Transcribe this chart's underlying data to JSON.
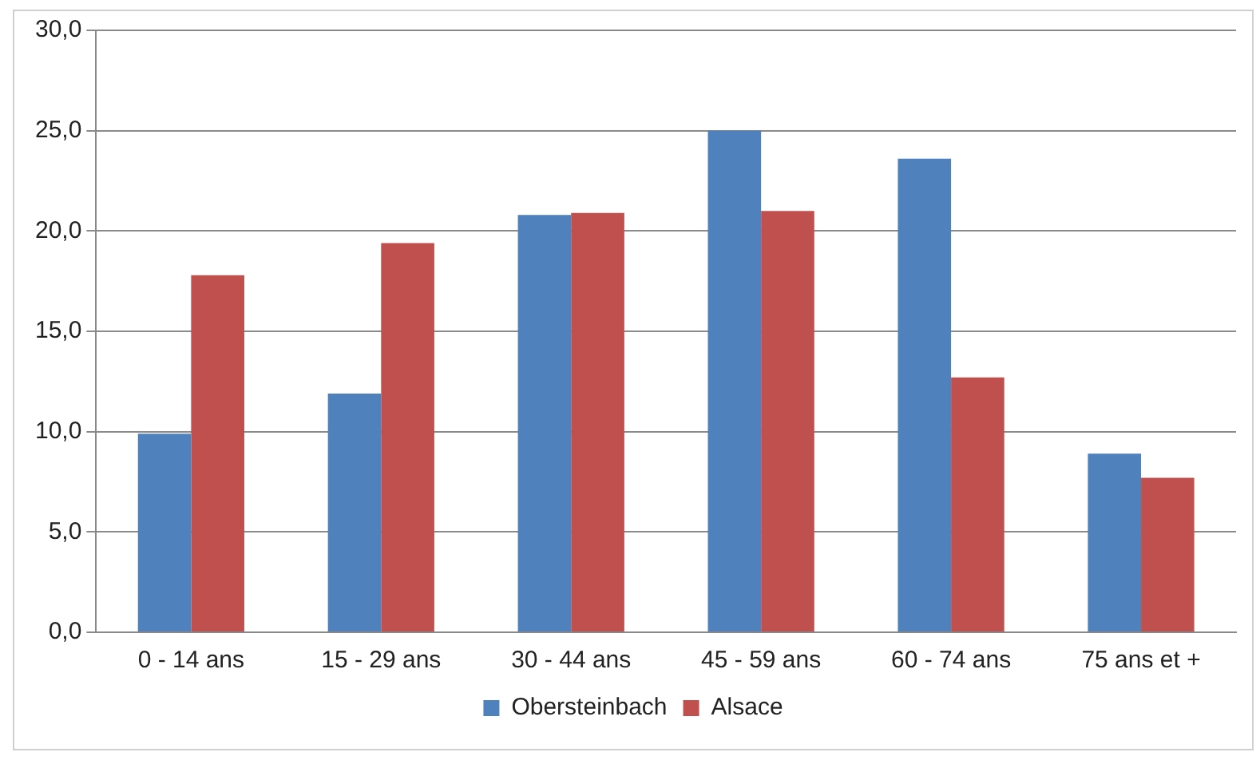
{
  "chart_data": {
    "type": "bar",
    "categories": [
      "0 - 14 ans",
      "15 - 29 ans",
      "30 - 44 ans",
      "45 - 59 ans",
      "60 - 74 ans",
      "75 ans et +"
    ],
    "series": [
      {
        "name": "Obersteinbach",
        "color": "#4f81bd",
        "values": [
          9.9,
          11.9,
          20.8,
          25.0,
          23.6,
          8.9
        ]
      },
      {
        "name": "Alsace",
        "color": "#c0504d",
        "values": [
          17.8,
          19.4,
          20.9,
          21.0,
          12.7,
          7.7
        ]
      }
    ],
    "ylim": [
      0,
      30
    ],
    "yticks": [
      {
        "value": 0,
        "label": "0,0"
      },
      {
        "value": 5,
        "label": "5,0"
      },
      {
        "value": 10,
        "label": "10,0"
      },
      {
        "value": 15,
        "label": "15,0"
      },
      {
        "value": 20,
        "label": "20,0"
      },
      {
        "value": 25,
        "label": "25,0"
      },
      {
        "value": 30,
        "label": "30,0"
      }
    ],
    "grid": "y",
    "legend": "bottom"
  }
}
